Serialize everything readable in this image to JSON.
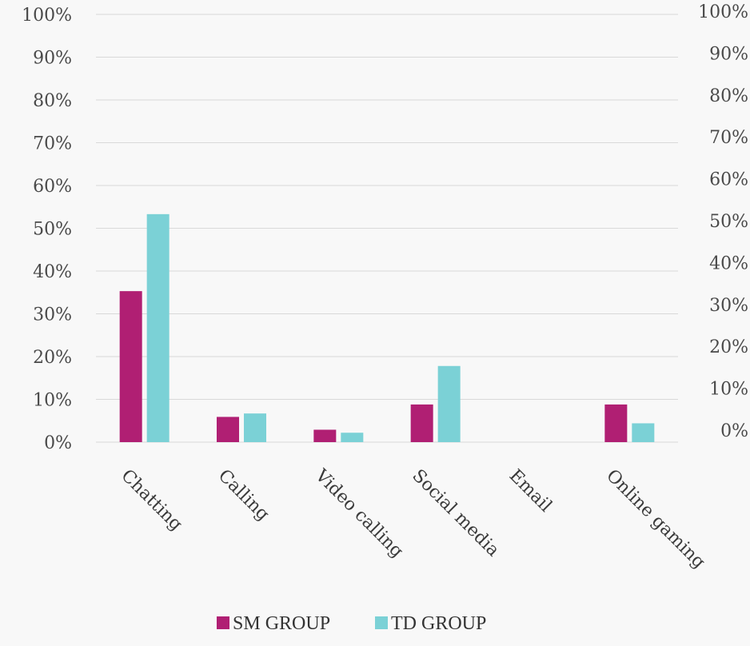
{
  "chart_data": {
    "type": "bar",
    "categories": [
      "Chatting",
      "Calling",
      "Video calling",
      "Social media",
      "Email",
      "Online gaming"
    ],
    "series": [
      {
        "name": "SM GROUP",
        "color": "#b01f73",
        "values": [
          35.3,
          5.9,
          2.9,
          8.8,
          0,
          8.8
        ]
      },
      {
        "name": "TD GROUP",
        "color": "#7bd1d6",
        "values": [
          53.3,
          6.7,
          2.2,
          17.8,
          0,
          4.4
        ]
      }
    ],
    "y_left": {
      "min": 0,
      "max": 100,
      "step": 10,
      "tick_labels": [
        "0%",
        "10%",
        "20%",
        "30%",
        "40%",
        "50%",
        "60%",
        "70%",
        "80%",
        "90%",
        "100%"
      ]
    },
    "y_right": {
      "min": 0,
      "max": 100,
      "step": 10,
      "tick_labels": [
        "0%",
        "10%",
        "20%",
        "30%",
        "40%",
        "50%",
        "60%",
        "70%",
        "80%",
        "90%",
        "100%"
      ]
    },
    "grid": true,
    "legend_position": "bottom",
    "gridline_color": "#d9d9d9"
  }
}
